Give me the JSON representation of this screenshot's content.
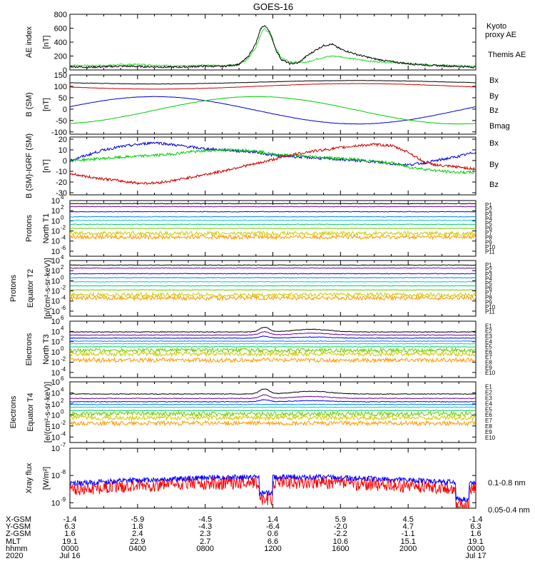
{
  "title": "GOES-16",
  "colors": {
    "black": "#000000",
    "blue": "#0000cc",
    "green": "#00cc00",
    "red": "#cc0000",
    "ae_kyoto": "#33dd33",
    "ch": [
      "#000000",
      "#6a00a0",
      "#0000ff",
      "#0080ff",
      "#00cccc",
      "#00cc66",
      "#66cc00",
      "#cccc00",
      "#ff9900",
      "#ff3300",
      "#cc0000"
    ],
    "xray_long": "#ff0000",
    "xray_short": "#0000ff"
  },
  "x_axis": {
    "rows": [
      {
        "label": "X-GSM",
        "values": [
          "-1.4",
          "-5.9",
          "-4.5",
          "1.4",
          "5.9",
          "4.5",
          "-1.4"
        ]
      },
      {
        "label": "Y-GSM",
        "values": [
          "6.3",
          "1.8",
          "-4.3",
          "-6.4",
          "-2.0",
          "4.7",
          "6.3"
        ]
      },
      {
        "label": "Z-GSM",
        "values": [
          "1.6",
          "2.4",
          "2.3",
          "0.6",
          "-2.2",
          "-1.1",
          "1.6"
        ]
      },
      {
        "label": "MLT",
        "values": [
          "19.1",
          "22.9",
          "2.7",
          "6.6",
          "10.6",
          "15.1",
          "19.1"
        ]
      },
      {
        "label": "hhmm",
        "values": [
          "0000",
          "0400",
          "0800",
          "1200",
          "1600",
          "2000",
          "0000"
        ]
      },
      {
        "label": "2020",
        "values": [
          "Jul 16",
          "",
          "",
          "",
          "",
          "",
          "Jul 17"
        ]
      }
    ]
  },
  "chart_data": [
    {
      "type": "line",
      "ylabel_lines": [
        "AE index",
        "[nT]"
      ],
      "ylim": [
        0,
        800
      ],
      "ticks": [
        "0",
        "200",
        "400",
        "600",
        "800"
      ],
      "x_hours": [
        0,
        1,
        2,
        3,
        4,
        5,
        6,
        7,
        8,
        9,
        10,
        10.5,
        11,
        11.3,
        11.5,
        11.8,
        12.2,
        12.5,
        13,
        13.5,
        14,
        14.5,
        15,
        15.5,
        16,
        16.5,
        17,
        18,
        19,
        20,
        21,
        22,
        23,
        24
      ],
      "series": [
        {
          "name": "Kyoto proxy AE",
          "color": "#33dd33",
          "values": [
            70,
            60,
            65,
            75,
            80,
            70,
            60,
            55,
            70,
            60,
            80,
            150,
            320,
            520,
            600,
            520,
            300,
            180,
            120,
            110,
            110,
            150,
            180,
            200,
            190,
            170,
            150,
            120,
            110,
            90,
            80,
            70,
            60,
            50
          ]
        },
        {
          "name": "Themis AE",
          "color": "#000000",
          "values": [
            50,
            40,
            45,
            55,
            50,
            45,
            40,
            45,
            55,
            50,
            80,
            180,
            380,
            600,
            640,
            560,
            280,
            150,
            90,
            100,
            200,
            280,
            350,
            370,
            300,
            260,
            220,
            160,
            120,
            90,
            70,
            60,
            50,
            40
          ]
        }
      ]
    },
    {
      "type": "line",
      "ylabel_lines": [
        "B (SM)",
        "[nT]"
      ],
      "ylim": [
        -110,
        150
      ],
      "ticks": [
        "-100",
        "-50",
        "0",
        "50",
        "100",
        "150"
      ],
      "series": [
        {
          "name": "Bx",
          "color": "#0000cc",
          "func": "bx"
        },
        {
          "name": "By",
          "color": "#00cc00",
          "func": "by"
        },
        {
          "name": "Bz",
          "color": "#cc0000",
          "func": "bz"
        },
        {
          "name": "Bmag",
          "color": "#000000",
          "func": "bmag"
        }
      ]
    },
    {
      "type": "line",
      "ylabel_lines": [
        "B (SM)-IGRF (SM)",
        "[nT]"
      ],
      "ylim": [
        -32,
        22
      ],
      "ticks": [
        "-30",
        "-20",
        "-10",
        "0",
        "10",
        "20"
      ],
      "x_hours": [
        0,
        1,
        2,
        3,
        4,
        5,
        6,
        7,
        8,
        9,
        10,
        11,
        12,
        13,
        14,
        15,
        16,
        17,
        18,
        19,
        20,
        21,
        22,
        23,
        24
      ],
      "series": [
        {
          "name": "Bx",
          "color": "#0000cc",
          "values": [
            0,
            5,
            10,
            13,
            15,
            17,
            15,
            13,
            11,
            10,
            9,
            8,
            5,
            4,
            3,
            2,
            1,
            0,
            -1,
            -3,
            -4,
            -2,
            1,
            4,
            8
          ]
        },
        {
          "name": "By",
          "color": "#00cc00",
          "values": [
            0,
            1,
            2,
            3,
            4,
            5,
            6,
            8,
            9,
            10,
            10,
            9,
            6,
            5,
            4,
            3,
            2,
            1,
            -1,
            -2,
            -6,
            -8,
            -10,
            -11,
            -11
          ]
        },
        {
          "name": "Bz",
          "color": "#cc0000",
          "values": [
            -12,
            -15,
            -17,
            -19,
            -21,
            -21,
            -19,
            -16,
            -13,
            -10,
            -6,
            -3,
            1,
            5,
            8,
            10,
            12,
            14,
            15,
            14,
            8,
            -2,
            -5,
            -6,
            -8
          ]
        }
      ]
    },
    {
      "type": "line",
      "log_scale": true,
      "ylabel_lines": [
        "Protons",
        "North T1"
      ],
      "ylim_exp": [
        -7,
        4
      ],
      "tick_exps": [
        -6,
        -4,
        -2,
        0,
        2,
        4
      ],
      "series": [
        {
          "name": "P1",
          "level": 3.4
        },
        {
          "name": "P2",
          "level": 2.8
        },
        {
          "name": "P3",
          "level": 1.8
        },
        {
          "name": "P4",
          "level": 0.8
        },
        {
          "name": "P5",
          "level": 0.1
        },
        {
          "name": "P6",
          "level": -0.7
        },
        {
          "name": "P7",
          "level": -1.5
        },
        {
          "name": "P8",
          "level": -2.5
        },
        {
          "name": "P9",
          "level": -3.2
        },
        {
          "name": "P10",
          "level": null
        },
        {
          "name": "P11",
          "level": null
        }
      ]
    },
    {
      "type": "line",
      "log_scale": true,
      "ylabel_lines": [
        "Protons",
        "Equator T2",
        "[p/(cm²-s-sr-keV)]"
      ],
      "ylim_exp": [
        -7,
        4
      ],
      "tick_exps": [
        -6,
        -4,
        -2,
        0,
        2,
        4
      ],
      "series": [
        {
          "name": "P1",
          "level": 3.1
        },
        {
          "name": "P2",
          "level": 2.5
        },
        {
          "name": "P3",
          "level": 1.4
        },
        {
          "name": "P4",
          "level": 0.6
        },
        {
          "name": "P5",
          "level": -0.2
        },
        {
          "name": "P6",
          "level": -1.0
        },
        {
          "name": "P7",
          "level": -1.8
        },
        {
          "name": "P8",
          "level": -2.8
        },
        {
          "name": "P9",
          "level": -3.4
        },
        {
          "name": "P10",
          "level": null
        },
        {
          "name": "P11",
          "level": null
        }
      ]
    },
    {
      "type": "line",
      "log_scale": true,
      "ylabel_lines": [
        "Electrons",
        "North T3"
      ],
      "ylim_exp": [
        -5,
        6
      ],
      "tick_exps": [
        -4,
        -2,
        0,
        2,
        4,
        6
      ],
      "series": [
        {
          "name": "E1",
          "level": 3.9
        },
        {
          "name": "E2",
          "level": 3.3
        },
        {
          "name": "E3",
          "level": 2.7
        },
        {
          "name": "E4",
          "level": 2.1
        },
        {
          "name": "E5",
          "level": 1.6
        },
        {
          "name": "E6",
          "level": 1.0
        },
        {
          "name": "E7",
          "level": 0.3
        },
        {
          "name": "E8",
          "level": -0.4
        },
        {
          "name": "E9",
          "level": -1.6
        },
        {
          "name": "E10",
          "level": null
        }
      ]
    },
    {
      "type": "line",
      "log_scale": true,
      "ylabel_lines": [
        "Electrons",
        "Equator T4",
        "[e/(cm²-s-sr-keV)]"
      ],
      "ylim_exp": [
        -5,
        6
      ],
      "tick_exps": [
        -4,
        -2,
        0,
        2,
        4,
        6
      ],
      "series": [
        {
          "name": "E1",
          "level": 3.8
        },
        {
          "name": "E2",
          "level": 3.0
        },
        {
          "name": "E3",
          "level": 2.4
        },
        {
          "name": "E4",
          "level": 1.9
        },
        {
          "name": "E5",
          "level": 1.4
        },
        {
          "name": "E6",
          "level": 0.8
        },
        {
          "name": "E7",
          "level": 0.2
        },
        {
          "name": "E8",
          "level": -0.5
        },
        {
          "name": "E9",
          "level": -1.5
        },
        {
          "name": "E10",
          "level": null
        }
      ]
    },
    {
      "type": "line",
      "log_scale": true,
      "ylabel_lines": [
        "Xray flux",
        "[W/m²]"
      ],
      "ylim_exp": [
        -9.2,
        -7
      ],
      "tick_exps": [
        -9,
        -8,
        -7
      ],
      "series": [
        {
          "name": "0.1-0.8 nm",
          "color": "#ff0000",
          "level": -8.5
        },
        {
          "name": "0.05-0.4 nm",
          "color": "#0000ff",
          "level": -8.3
        }
      ]
    }
  ]
}
